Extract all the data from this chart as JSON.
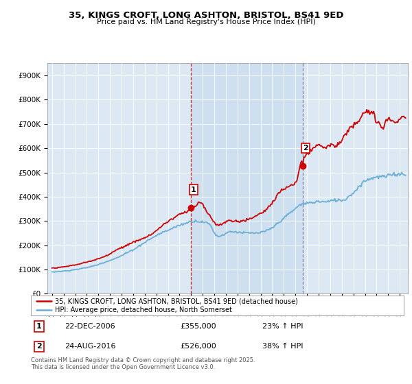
{
  "title_line1": "35, KINGS CROFT, LONG ASHTON, BRISTOL, BS41 9ED",
  "title_line2": "Price paid vs. HM Land Registry's House Price Index (HPI)",
  "legend_label1": "35, KINGS CROFT, LONG ASHTON, BRISTOL, BS41 9ED (detached house)",
  "legend_label2": "HPI: Average price, detached house, North Somerset",
  "sale1_date": "22-DEC-2006",
  "sale1_price": 355000,
  "sale1_pct": "23% ↑ HPI",
  "sale2_date": "24-AUG-2016",
  "sale2_price": 526000,
  "sale2_pct": "38% ↑ HPI",
  "footnote": "Contains HM Land Registry data © Crown copyright and database right 2025.\nThis data is licensed under the Open Government Licence v3.0.",
  "background_color": "#ffffff",
  "plot_bg_color": "#dce9f5",
  "hpi_color": "#6aaed6",
  "price_color": "#cc0000",
  "vline1_color": "#cc0000",
  "vline2_color": "#555577",
  "shade_color": "#c5d9ee",
  "ylim_max": 950000,
  "ylabel_ticks": [
    0,
    100000,
    200000,
    300000,
    400000,
    500000,
    600000,
    700000,
    800000,
    900000
  ],
  "sale1_x": 2006.97,
  "sale2_x": 2016.64
}
